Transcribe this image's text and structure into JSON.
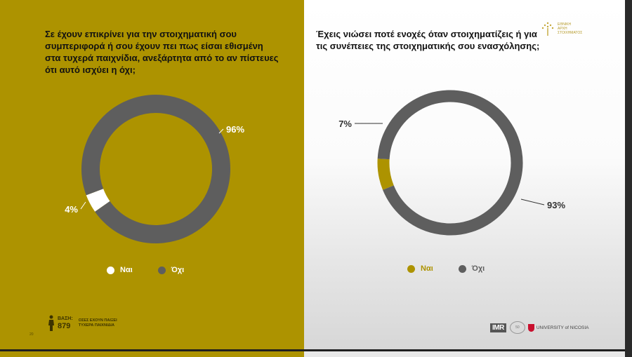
{
  "left_panel": {
    "question": "Σε έχουν επικρίνει για την στοιχηματική σου συμπεριφορά ή σου έχουν πει πως είσαι εθισμένη στα τυχερά παιχνίδια, ανεξάρτητα από το αν πίστευες ότι αυτό ισχύει η όχι;",
    "base_label": "ΒΑΣΗ:",
    "base_value": "879",
    "base_desc": "ΟΣΕΣ ΕΧΟΥΝ ΠΑΙΞΕΙ ΤΥΧΕΡΑ ΠΑΙΧΝΙΔΙΑ",
    "page_number": "20"
  },
  "right_panel": {
    "question": "Έχεις νιώσει ποτέ ενοχές όταν στοιχηματίζεις ή για τις συνέπειες της στοιχηματικής σου ενασχόλησης;",
    "logo_text_1": "ΕΘΝΙΚΗ",
    "logo_text_2": "ΑΡΧΗ",
    "logo_text_3": "ΣΤΟΙΧΗΜΑΤΟΣ",
    "footer_logo_1": "IMR",
    "footer_logo_2": "UNIVERSITY of NICOSIA"
  },
  "colors": {
    "gold": "#ad9300",
    "gray": "#5e5e5e",
    "white": "#ffffff"
  },
  "chart_data": [
    {
      "type": "pie",
      "categories": [
        "Ναι",
        "Όχι"
      ],
      "values": [
        4,
        96
      ],
      "labels": [
        "4%",
        "96%"
      ],
      "colors": [
        "#ffffff",
        "#5e5e5e"
      ],
      "legend": "bottom"
    },
    {
      "type": "pie",
      "categories": [
        "Ναι",
        "Όχι"
      ],
      "values": [
        7,
        93
      ],
      "labels": [
        "7%",
        "93%"
      ],
      "colors": [
        "#ad9300",
        "#5e5e5e"
      ],
      "legend": "bottom"
    }
  ]
}
